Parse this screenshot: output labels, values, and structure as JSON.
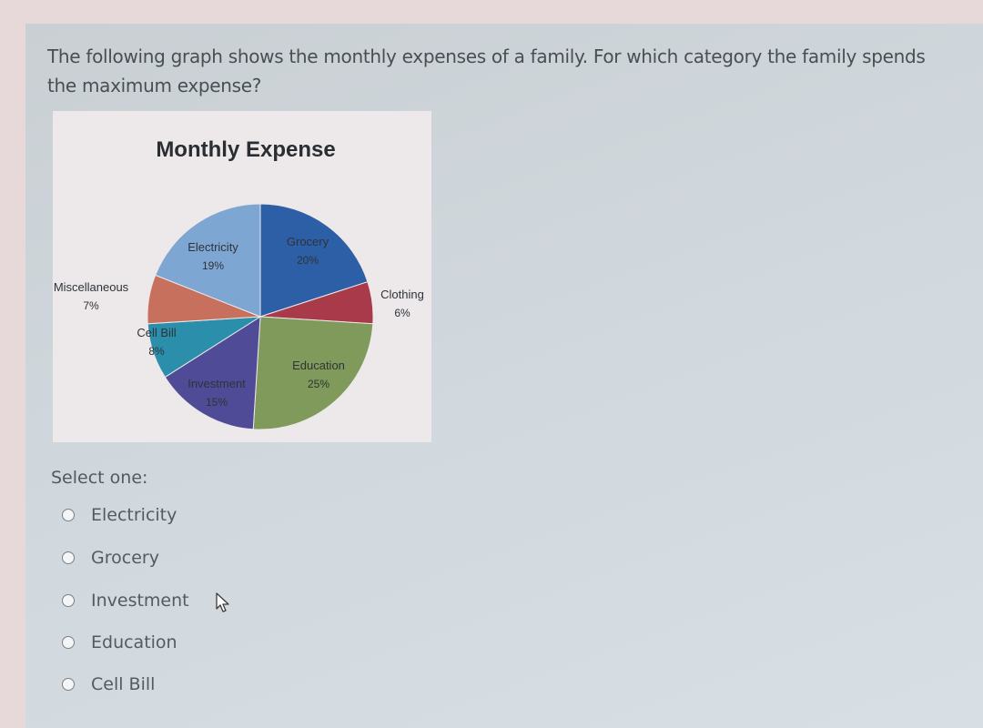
{
  "question": "The following graph shows the monthly expenses of a family. For which category the family spends the maximum expense?",
  "select_prompt": "Select one:",
  "options": [
    {
      "label": "Electricity"
    },
    {
      "label": "Grocery"
    },
    {
      "label": "Investment"
    },
    {
      "label": "Education"
    },
    {
      "label": "Cell Bill"
    }
  ],
  "chart_data": {
    "type": "pie",
    "title": "Monthly Expense",
    "slices": [
      {
        "label": "Grocery",
        "value": 20,
        "display": "20%",
        "color": "#2c5fa6"
      },
      {
        "label": "Clothing",
        "value": 6,
        "display": "6%",
        "color": "#a83a4a"
      },
      {
        "label": "Education",
        "value": 25,
        "display": "25%",
        "color": "#7f9a5a"
      },
      {
        "label": "Investment",
        "value": 15,
        "display": "15%",
        "color": "#4f4b96"
      },
      {
        "label": "Cell Bill",
        "value": 8,
        "display": "8%",
        "color": "#2b8fab"
      },
      {
        "label": "Miscellaneous",
        "value": 7,
        "display": "7%",
        "color": "#c8705e"
      },
      {
        "label": "Electricity",
        "value": 19,
        "display": "19%",
        "color": "#7ea6d2"
      }
    ]
  },
  "icons": {
    "cursor": "mouse-pointer-icon"
  }
}
